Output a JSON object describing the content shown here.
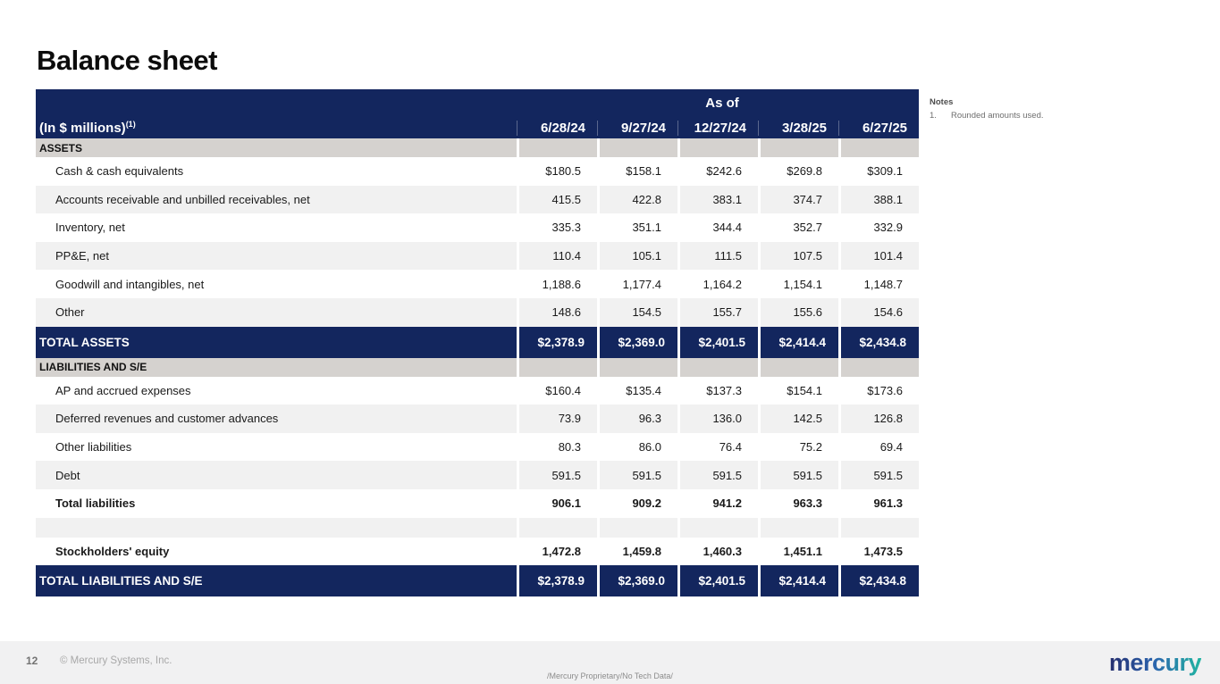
{
  "slide": {
    "title": "Balance sheet"
  },
  "table": {
    "unit_label": "(In $ millions)",
    "unit_note_ref": "(1)",
    "as_of_label": "As of",
    "columns": [
      "6/28/24",
      "9/27/24",
      "12/27/24",
      "3/28/25",
      "6/27/25"
    ],
    "rows": [
      {
        "type": "section",
        "label": "ASSETS",
        "values": [
          "",
          "",
          "",
          "",
          ""
        ]
      },
      {
        "type": "data",
        "label": "Cash & cash equivalents",
        "values": [
          "$180.5",
          "$158.1",
          "$242.6",
          "$269.8",
          "$309.1"
        ]
      },
      {
        "type": "data",
        "label": "Accounts receivable and unbilled receivables, net",
        "values": [
          "415.5",
          "422.8",
          "383.1",
          "374.7",
          "388.1"
        ]
      },
      {
        "type": "data",
        "label": "Inventory, net",
        "values": [
          "335.3",
          "351.1",
          "344.4",
          "352.7",
          "332.9"
        ]
      },
      {
        "type": "data",
        "label": "PP&E, net",
        "values": [
          "110.4",
          "105.1",
          "111.5",
          "107.5",
          "101.4"
        ]
      },
      {
        "type": "data",
        "label": "Goodwill and intangibles, net",
        "values": [
          "1,188.6",
          "1,177.4",
          "1,164.2",
          "1,154.1",
          "1,148.7"
        ]
      },
      {
        "type": "data",
        "label": "Other",
        "values": [
          "148.6",
          "154.5",
          "155.7",
          "155.6",
          "154.6"
        ]
      },
      {
        "type": "grand_total",
        "label": "TOTAL ASSETS",
        "values": [
          "$2,378.9",
          "$2,369.0",
          "$2,401.5",
          "$2,414.4",
          "$2,434.8"
        ]
      },
      {
        "type": "section",
        "label": "LIABILITIES AND S/E",
        "values": [
          "",
          "",
          "",
          "",
          ""
        ]
      },
      {
        "type": "data",
        "label": "AP and accrued expenses",
        "values": [
          "$160.4",
          "$135.4",
          "$137.3",
          "$154.1",
          "$173.6"
        ]
      },
      {
        "type": "data",
        "label": "Deferred revenues and customer advances",
        "values": [
          "73.9",
          "96.3",
          "136.0",
          "142.5",
          "126.8"
        ]
      },
      {
        "type": "data",
        "label": "Other liabilities",
        "values": [
          "80.3",
          "86.0",
          "76.4",
          "75.2",
          "69.4"
        ]
      },
      {
        "type": "data",
        "label": "Debt",
        "values": [
          "591.5",
          "591.5",
          "591.5",
          "591.5",
          "591.5"
        ]
      },
      {
        "type": "data_bold",
        "label": "Total liabilities",
        "values": [
          "906.1",
          "909.2",
          "941.2",
          "963.3",
          "961.3"
        ]
      },
      {
        "type": "spacer",
        "label": "",
        "values": [
          "",
          "",
          "",
          "",
          ""
        ]
      },
      {
        "type": "data_bold",
        "label": "Stockholders' equity",
        "values": [
          "1,472.8",
          "1,459.8",
          "1,460.3",
          "1,451.1",
          "1,473.5"
        ]
      },
      {
        "type": "grand_total",
        "label": "TOTAL LIABILITIES AND S/E",
        "values": [
          "$2,378.9",
          "$2,369.0",
          "$2,401.5",
          "$2,414.4",
          "$2,434.8"
        ]
      }
    ]
  },
  "notes": {
    "title": "Notes",
    "items": [
      {
        "num": "1.",
        "text": "Rounded amounts used."
      }
    ]
  },
  "footer": {
    "page_number": "12",
    "copyright": "© Mercury Systems, Inc.",
    "classification": "/Mercury Proprietary/No Tech Data/",
    "logo_text": "mercury"
  },
  "colors": {
    "header_navy": "#13265e",
    "section_gray": "#d5d2cf",
    "stripe_gray": "#f1f1f1",
    "footer_bg": "#f1f1f2",
    "logo_navy": "#252e6e",
    "logo_teal": "#21b5a2"
  }
}
